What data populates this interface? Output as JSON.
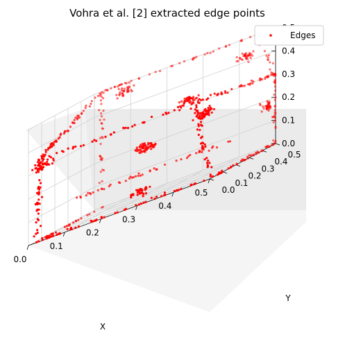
{
  "chart_data": {
    "type": "scatter",
    "title": "Vohra et al. [2] extracted edge points",
    "xlabel": "X",
    "ylabel": "Y",
    "zlabel": "",
    "xlim": [
      0,
      0.5
    ],
    "ylim": [
      0,
      0.5
    ],
    "zlim": [
      0,
      0.5
    ],
    "x_ticks": [
      "0.0",
      "0.1",
      "0.2",
      "0.3",
      "0.4",
      "0.5"
    ],
    "y_ticks": [
      "0.0",
      "0.1",
      "0.2",
      "0.3",
      "0.4",
      "0.5"
    ],
    "z_ticks": [
      "0.0",
      "0.1",
      "0.2",
      "0.3",
      "0.4",
      "0.5"
    ],
    "grid": true,
    "legend_position": "top-right",
    "series": [
      {
        "name": "Edges",
        "color": "#ff0000",
        "marker": "dot",
        "edges": [
          {
            "from": [
              0.02,
              0.02,
              0.35
            ],
            "to": [
              0.02,
              0.02,
              0.0
            ],
            "n": 40
          },
          {
            "from": [
              0.02,
              0.02,
              0.0
            ],
            "to": [
              0.5,
              0.02,
              0.0
            ],
            "n": 55
          },
          {
            "from": [
              0.5,
              0.02,
              0.0
            ],
            "to": [
              0.5,
              0.5,
              0.0
            ],
            "n": 45
          },
          {
            "from": [
              0.02,
              0.02,
              0.35
            ],
            "to": [
              0.45,
              0.02,
              0.35
            ],
            "n": 40
          },
          {
            "from": [
              0.02,
              0.02,
              0.35
            ],
            "to": [
              0.02,
              0.5,
              0.5
            ],
            "n": 60
          },
          {
            "from": [
              0.02,
              0.5,
              0.5
            ],
            "to": [
              0.45,
              0.5,
              0.5
            ],
            "n": 45
          },
          {
            "from": [
              0.45,
              0.5,
              0.5
            ],
            "to": [
              0.5,
              0.5,
              0.3
            ],
            "n": 20
          },
          {
            "from": [
              0.45,
              0.02,
              0.35
            ],
            "to": [
              0.5,
              0.02,
              0.0
            ],
            "n": 40
          },
          {
            "from": [
              0.45,
              0.02,
              0.35
            ],
            "to": [
              0.5,
              0.5,
              0.3
            ],
            "n": 45
          },
          {
            "from": [
              0.5,
              0.5,
              0.3
            ],
            "to": [
              0.5,
              0.5,
              0.0
            ],
            "n": 30
          },
          {
            "from": [
              0.02,
              0.3,
              0.1
            ],
            "to": [
              0.45,
              0.3,
              0.1
            ],
            "n": 50
          },
          {
            "from": [
              0.02,
              0.5,
              0.5
            ],
            "to": [
              0.02,
              0.5,
              0.1
            ],
            "n": 30
          },
          {
            "from": [
              0.02,
              0.02,
              0.0
            ],
            "to": [
              0.02,
              0.5,
              0.0
            ],
            "n": 25
          }
        ],
        "clusters": [
          {
            "center": [
              0.02,
              0.05,
              0.32
            ],
            "n": 45
          },
          {
            "center": [
              0.25,
              0.2,
              0.22
            ],
            "n": 60
          },
          {
            "center": [
              0.35,
              0.25,
              0.35
            ],
            "n": 45
          },
          {
            "center": [
              0.45,
              0.1,
              0.28
            ],
            "n": 50
          },
          {
            "center": [
              0.42,
              0.5,
              0.42
            ],
            "n": 35
          },
          {
            "center": [
              0.1,
              0.45,
              0.47
            ],
            "n": 30
          },
          {
            "center": [
              0.5,
              0.45,
              0.18
            ],
            "n": 35
          },
          {
            "center": [
              0.3,
              0.02,
              0.05
            ],
            "n": 30
          }
        ]
      }
    ]
  }
}
